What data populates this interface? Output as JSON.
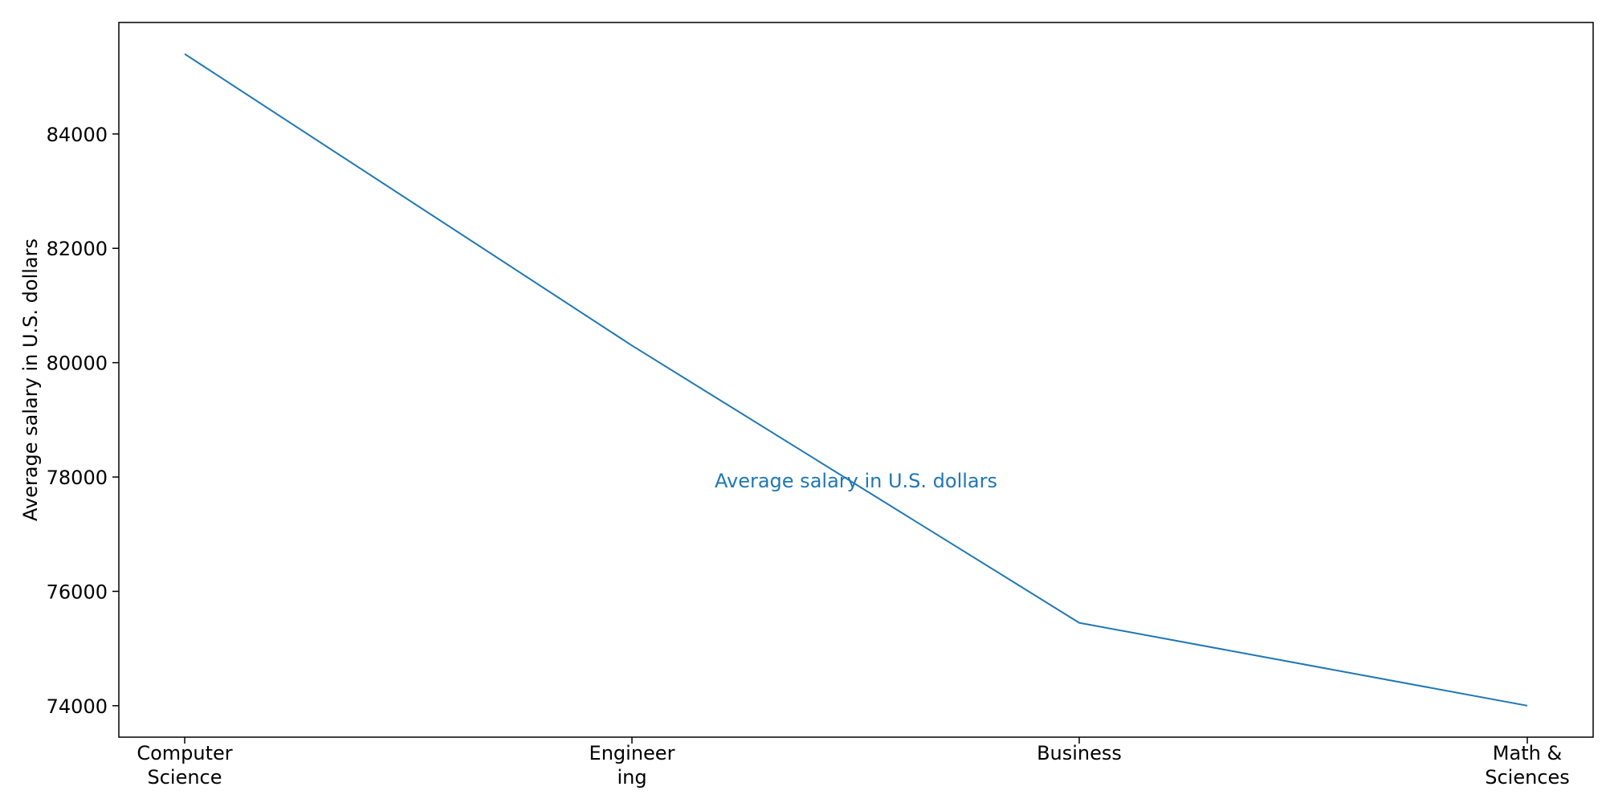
{
  "chart_data": {
    "type": "line",
    "categories": [
      "Computer Science",
      "Engineering",
      "Business",
      "Math & Sciences"
    ],
    "category_tick_labels": [
      [
        "Computer",
        "Science"
      ],
      [
        "Engineer",
        "ing"
      ],
      [
        "Business"
      ],
      [
        "Math &",
        "Sciences"
      ]
    ],
    "series": [
      {
        "values": [
          85400,
          80300,
          75450,
          74000
        ]
      }
    ],
    "title": "",
    "xlabel": "",
    "ylabel": "Average salary in U.S. dollars",
    "annotation": "Average salary in U.S. dollars",
    "yticks": [
      74000,
      76000,
      78000,
      80000,
      82000,
      84000
    ],
    "ylim": [
      73450,
      85950
    ],
    "grid": false,
    "legend": "none",
    "colors": {
      "line": "#1f77b4",
      "annotation": "#1f77b4",
      "axes": "#000000",
      "background": "#ffffff"
    }
  }
}
